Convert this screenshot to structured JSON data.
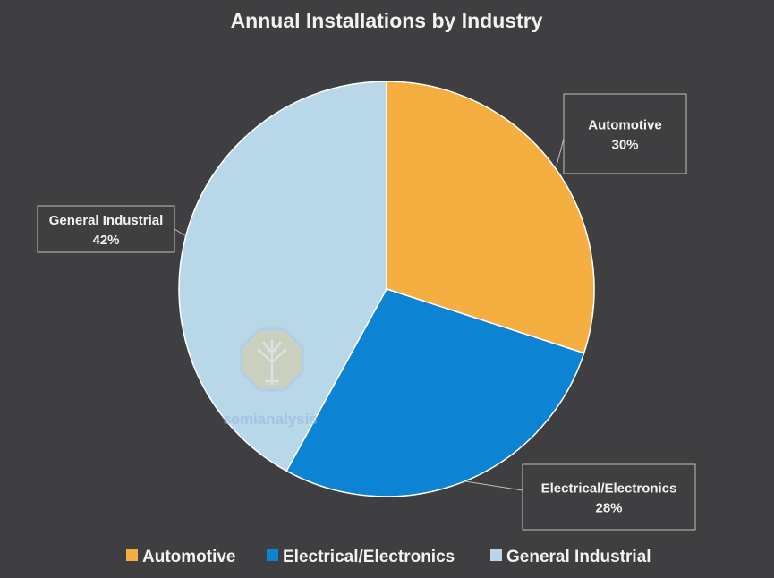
{
  "colors": {
    "background": "#3f3f41",
    "text": "#f2f2f2",
    "callout_border": "#bfbfbf"
  },
  "watermark": {
    "text": "semianalysis",
    "icon": "tree-octagon-logo"
  },
  "chart_data": {
    "type": "pie",
    "title": "Annual Installations by Industry",
    "start_angle_deg": 0,
    "direction": "clockwise",
    "legend_position": "bottom",
    "slices": [
      {
        "label": "Automotive",
        "value": 30,
        "display": "30%",
        "color": "#f5af41"
      },
      {
        "label": "Electrical/Electronics",
        "value": 28,
        "display": "28%",
        "color": "#0c84d3"
      },
      {
        "label": "General Industrial",
        "value": 42,
        "display": "42%",
        "color": "#b8d7e9"
      }
    ]
  }
}
